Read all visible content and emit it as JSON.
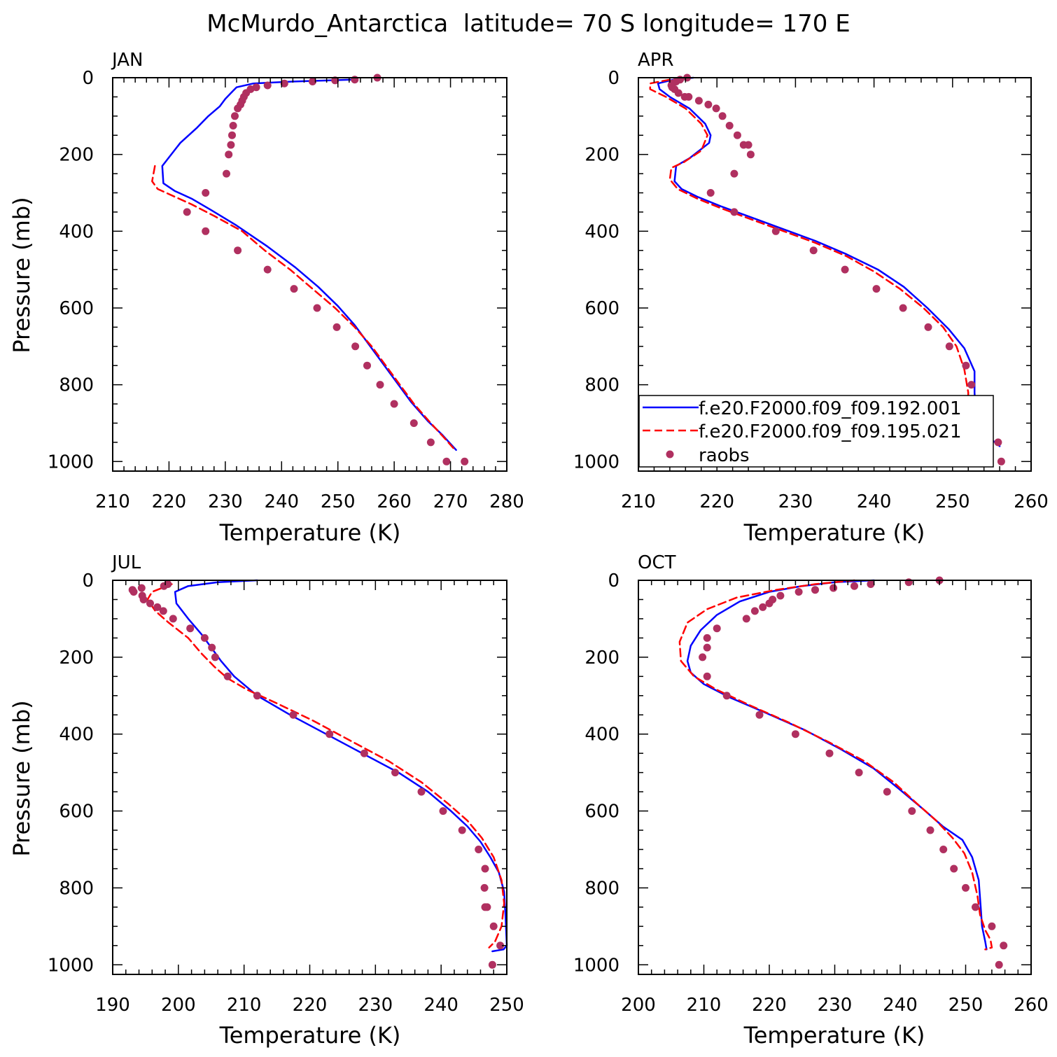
{
  "figure": {
    "title": "McMurdo_Antarctica  latitude= 70 S longitude= 170 E"
  },
  "legend": {
    "series1": "f.e20.F2000.f09_f09.192.001",
    "series2": "f.e20.F2000.f09_f09.195.021",
    "series3": "raobs"
  },
  "colors": {
    "series1": "#0000ff",
    "series2": "#ff0000",
    "series3": "#b03060"
  },
  "chart_data": [
    {
      "type": "line",
      "panel": "JAN",
      "xlabel": "Temperature (K)",
      "ylabel": "Pressure (mb)",
      "xlim": [
        210,
        280
      ],
      "xticks": [
        210,
        220,
        230,
        240,
        250,
        260,
        270,
        280
      ],
      "ylim": [
        1025,
        0
      ],
      "yticks": [
        0,
        200,
        400,
        600,
        800,
        1000
      ],
      "grid": false,
      "series": [
        {
          "name": "f.e20.F2000.f09_f09.192.001",
          "style": "solid",
          "x": [
            252.5,
            242.0,
            235.0,
            232.0,
            231.0,
            230.0,
            229.0,
            227.0,
            225.0,
            222.0,
            218.8,
            219.0,
            221.0,
            224.0,
            227.5,
            232.0,
            237.5,
            242.5,
            246.5,
            250.0,
            253.0,
            255.5,
            258.0,
            260.5,
            263.0,
            266.0,
            268.5,
            271.0
          ],
          "y": [
            5,
            10,
            15,
            25,
            40,
            55,
            75,
            100,
            130,
            170,
            230,
            275,
            295,
            315,
            345,
            385,
            440,
            495,
            545,
            595,
            645,
            695,
            745,
            795,
            845,
            895,
            930,
            970
          ]
        },
        {
          "name": "f.e20.F2000.f09_f09.195.021",
          "style": "dashed",
          "x": [
            217.5,
            217.0,
            218.0,
            221.0,
            224.0,
            228.0,
            233.0,
            237.0,
            241.5,
            245.5,
            249.5,
            253.0,
            256.0,
            258.5,
            261.0,
            263.5,
            266.5,
            269.0,
            270.5
          ],
          "y": [
            230,
            270,
            290,
            310,
            330,
            360,
            400,
            450,
            500,
            550,
            600,
            650,
            700,
            750,
            800,
            850,
            900,
            940,
            965
          ]
        },
        {
          "name": "raobs",
          "style": "markers",
          "x": [
            257.0,
            253.0,
            249.5,
            245.5,
            240.5,
            237.5,
            235.5,
            234.5,
            233.7,
            233.3,
            233.0,
            232.7,
            232.2,
            231.7,
            231.4,
            231.2,
            231.0,
            230.6,
            230.2,
            226.5,
            223.2,
            226.5,
            232.2,
            237.5,
            242.2,
            246.3,
            249.8,
            253.1,
            255.2,
            257.5,
            260.0,
            263.5,
            266.5,
            269.3,
            272.5
          ],
          "y": [
            0,
            5,
            7,
            10,
            15,
            20,
            25,
            30,
            40,
            50,
            60,
            70,
            80,
            100,
            125,
            150,
            175,
            200,
            250,
            300,
            350,
            400,
            450,
            500,
            550,
            600,
            650,
            700,
            750,
            800,
            850,
            900,
            950,
            1000,
            1000
          ]
        }
      ]
    },
    {
      "type": "line",
      "panel": "APR",
      "xlabel": "Temperature (K)",
      "ylabel": "",
      "xlim": [
        210,
        260
      ],
      "xticks": [
        210,
        220,
        230,
        240,
        250,
        260
      ],
      "ylim": [
        1025,
        0
      ],
      "yticks": [
        0,
        200,
        400,
        600,
        800,
        1000
      ],
      "grid": false,
      "series": [
        {
          "name": "f.e20.F2000.f09_f09.192.001",
          "style": "solid",
          "x": [
            217.0,
            214.5,
            212.5,
            212.7,
            214.0,
            216.5,
            218.5,
            219.2,
            219.0,
            216.5,
            214.8,
            214.6,
            215.5,
            217.5,
            220.5,
            224.5,
            228.5,
            232.5,
            236.5,
            240.5,
            243.8,
            246.8,
            249.5,
            251.5,
            252.8,
            252.8,
            253.0,
            254.5,
            256.0
          ],
          "y": [
            0,
            5,
            15,
            30,
            50,
            80,
            120,
            150,
            170,
            210,
            230,
            270,
            290,
            310,
            335,
            365,
            395,
            425,
            460,
            500,
            545,
            600,
            655,
            705,
            765,
            820,
            900,
            935,
            960
          ]
        },
        {
          "name": "f.e20.F2000.f09_f09.195.021",
          "style": "dashed",
          "x": [
            214.0,
            211.5,
            211.5,
            213.5,
            216.0,
            218.0,
            218.8,
            218.0,
            215.8,
            214.2,
            214.0,
            215.0,
            217.5,
            220.5,
            224.5,
            228.5,
            232.5,
            236.5,
            240.0,
            243.3,
            246.3,
            248.8,
            250.5,
            251.5,
            252.0,
            252.0,
            252.5,
            255.0
          ],
          "y": [
            5,
            15,
            30,
            50,
            80,
            120,
            150,
            190,
            220,
            235,
            265,
            290,
            315,
            340,
            370,
            400,
            430,
            465,
            505,
            550,
            600,
            650,
            700,
            760,
            820,
            900,
            930,
            955
          ]
        },
        {
          "name": "raobs",
          "style": "markers",
          "x": [
            216.2,
            215.3,
            214.8,
            214.3,
            214.2,
            214.3,
            214.6,
            215.1,
            215.9,
            216.4,
            217.7,
            218.9,
            219.9,
            220.7,
            221.6,
            222.6,
            223.4,
            224.0,
            224.3,
            222.2,
            219.2,
            222.2,
            227.5,
            232.3,
            236.3,
            240.3,
            243.7,
            246.9,
            249.6,
            251.7,
            252.4,
            252.6,
            253.9,
            255.8,
            256.2
          ],
          "y": [
            0,
            5,
            10,
            15,
            20,
            25,
            30,
            40,
            50,
            50,
            60,
            70,
            80,
            100,
            125,
            150,
            175,
            175,
            200,
            250,
            300,
            350,
            400,
            450,
            500,
            550,
            600,
            650,
            700,
            750,
            800,
            850,
            900,
            950,
            1000
          ]
        }
      ]
    },
    {
      "type": "line",
      "panel": "JUL",
      "xlabel": "Temperature (K)",
      "ylabel": "Pressure (mb)",
      "xlim": [
        190,
        250
      ],
      "xticks": [
        190,
        200,
        210,
        220,
        230,
        240,
        250
      ],
      "ylim": [
        1025,
        0
      ],
      "yticks": [
        0,
        200,
        400,
        600,
        800,
        1000
      ],
      "grid": false,
      "series": [
        {
          "name": "f.e20.F2000.f09_f09.192.001",
          "style": "solid",
          "x": [
            212.0,
            206.0,
            201.5,
            199.5,
            199.7,
            201.5,
            203.5,
            205.0,
            206.5,
            208.5,
            212.0,
            217.0,
            222.5,
            228.0,
            233.5,
            238.0,
            241.5,
            244.0,
            246.0,
            247.5,
            248.8,
            249.6,
            249.8,
            250.0,
            249.5,
            247.8
          ],
          "y": [
            0,
            5,
            15,
            30,
            60,
            100,
            140,
            175,
            210,
            250,
            300,
            350,
            400,
            450,
            500,
            550,
            600,
            640,
            680,
            720,
            760,
            810,
            870,
            950,
            960,
            965
          ]
        },
        {
          "name": "f.e20.F2000.f09_f09.195.021",
          "style": "dashed",
          "x": [
            199.0,
            196.0,
            195.3,
            196.5,
            198.5,
            201.5,
            203.5,
            205.5,
            207.5,
            210.5,
            215.0,
            220.5,
            226.5,
            232.0,
            237.0,
            241.0,
            244.0,
            246.2,
            248.0,
            249.2,
            249.6,
            249.2,
            248.2,
            247.3
          ],
          "y": [
            10,
            30,
            50,
            80,
            110,
            150,
            190,
            225,
            255,
            285,
            320,
            365,
            420,
            470,
            525,
            580,
            625,
            670,
            720,
            780,
            840,
            900,
            940,
            955
          ]
        },
        {
          "name": "raobs",
          "style": "markers",
          "x": [
            198.4,
            197.8,
            194.4,
            193.0,
            193.2,
            194.5,
            194.7,
            195.7,
            196.8,
            197.7,
            199.2,
            201.8,
            204.0,
            205.1,
            205.6,
            207.5,
            212.0,
            217.5,
            223.0,
            228.3,
            233.0,
            237.0,
            240.3,
            243.2,
            245.7,
            246.7,
            246.6,
            246.7,
            247.0,
            248.0,
            249.0,
            247.8
          ],
          "y": [
            10,
            15,
            20,
            25,
            30,
            40,
            50,
            60,
            70,
            80,
            100,
            125,
            150,
            175,
            200,
            250,
            300,
            350,
            400,
            450,
            500,
            550,
            600,
            650,
            700,
            750,
            800,
            850,
            850,
            900,
            950,
            1000
          ]
        }
      ]
    },
    {
      "type": "line",
      "panel": "OCT",
      "xlabel": "Temperature (K)",
      "ylabel": "",
      "xlim": [
        200,
        260
      ],
      "xticks": [
        200,
        210,
        220,
        230,
        240,
        250,
        260
      ],
      "ylim": [
        1025,
        0
      ],
      "yticks": [
        0,
        200,
        400,
        600,
        800,
        1000
      ],
      "grid": false,
      "series": [
        {
          "name": "f.e20.F2000.f09_f09.192.001",
          "style": "solid",
          "x": [
            236.0,
            230.0,
            225.0,
            220.0,
            215.5,
            212.0,
            209.5,
            208.0,
            207.5,
            208.0,
            210.0,
            214.0,
            219.5,
            225.5,
            231.0,
            236.0,
            240.0,
            243.5,
            246.5,
            249.5,
            251.0,
            252.0,
            252.3,
            252.5,
            253.0,
            253.2
          ],
          "y": [
            0,
            5,
            15,
            30,
            55,
            90,
            130,
            170,
            210,
            240,
            270,
            305,
            345,
            390,
            440,
            490,
            545,
            595,
            640,
            675,
            720,
            780,
            850,
            900,
            940,
            960
          ]
        },
        {
          "name": "f.e20.F2000.f09_f09.195.021",
          "style": "dashed",
          "x": [
            233.0,
            227.0,
            221.0,
            215.0,
            210.5,
            207.5,
            206.3,
            206.5,
            208.5,
            212.0,
            217.0,
            223.0,
            229.0,
            234.5,
            239.0,
            242.5,
            245.5,
            248.0,
            249.8,
            251.0,
            251.8,
            252.2,
            253.0,
            253.8,
            254.0,
            253.0
          ],
          "y": [
            0,
            10,
            25,
            45,
            75,
            110,
            160,
            210,
            250,
            285,
            325,
            370,
            420,
            470,
            525,
            580,
            625,
            670,
            710,
            760,
            820,
            870,
            910,
            935,
            955,
            960
          ]
        },
        {
          "name": "raobs",
          "style": "markers",
          "x": [
            246.0,
            241.3,
            235.5,
            233.0,
            229.8,
            227.0,
            224.5,
            221.7,
            220.5,
            220.0,
            219.0,
            217.8,
            216.5,
            212.0,
            210.5,
            210.5,
            209.8,
            210.5,
            213.5,
            218.5,
            224.0,
            229.2,
            233.7,
            238.0,
            241.8,
            244.6,
            246.6,
            248.2,
            250.0,
            251.5,
            254.0,
            255.8,
            255.1
          ],
          "y": [
            0,
            5,
            10,
            15,
            20,
            25,
            30,
            40,
            50,
            60,
            70,
            80,
            100,
            125,
            150,
            175,
            200,
            250,
            300,
            350,
            400,
            450,
            500,
            550,
            600,
            650,
            700,
            750,
            800,
            850,
            900,
            950,
            1000
          ]
        }
      ]
    }
  ]
}
